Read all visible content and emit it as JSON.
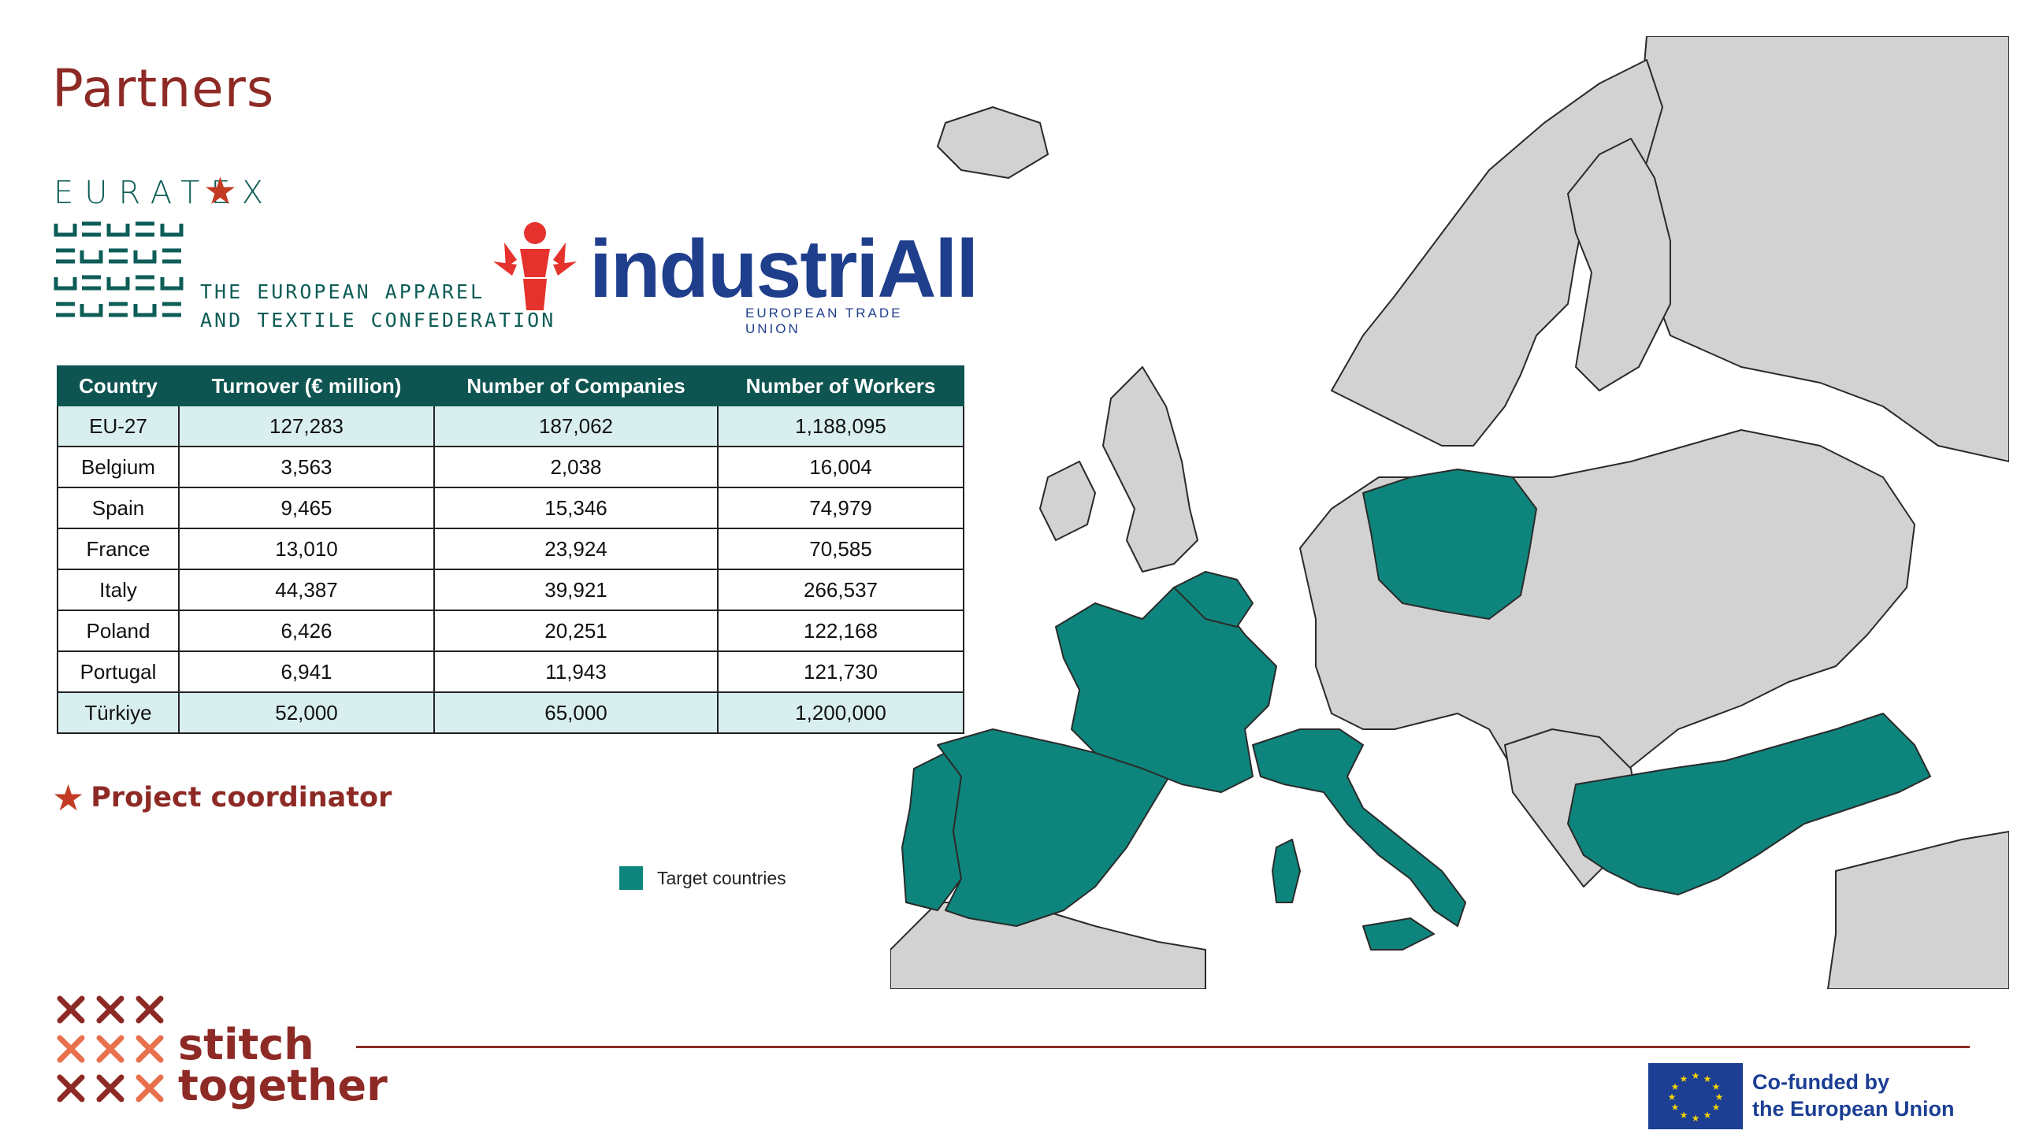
{
  "title": "Partners",
  "euratex": {
    "name": "EURATEX",
    "tagline_1": "THE EUROPEAN APPAREL",
    "tagline_2": "AND TEXTILE CONFEDERATION"
  },
  "industriall": {
    "name": "industriAll",
    "subtitle": "EUROPEAN TRADE UNION"
  },
  "table": {
    "headers": [
      "Country",
      "Turnover (€ million)",
      "Number of Companies",
      "Number of Workers"
    ],
    "rows": [
      [
        "EU-27",
        "127,283",
        "187,062",
        "1,188,095"
      ],
      [
        "Belgium",
        "3,563",
        "2,038",
        "16,004"
      ],
      [
        "Spain",
        "9,465",
        "15,346",
        "74,979"
      ],
      [
        "France",
        "13,010",
        "23,924",
        "70,585"
      ],
      [
        "Italy",
        "44,387",
        "39,921",
        "266,537"
      ],
      [
        "Poland",
        "6,426",
        "20,251",
        "122,168"
      ],
      [
        "Portugal",
        "6,941",
        "11,943",
        "121,730"
      ],
      [
        "Türkiye",
        "52,000",
        "65,000",
        "1,200,000"
      ]
    ],
    "highlighted_rows": [
      0,
      7
    ]
  },
  "coordinator_note": "Project coordinator",
  "legend": {
    "label": "Target countries",
    "color": "#0e857c"
  },
  "map": {
    "target_countries": [
      "Belgium",
      "Spain",
      "Portugal",
      "France",
      "Italy",
      "Poland",
      "Türkiye"
    ],
    "colors": {
      "target": "#0e857c",
      "other": "#d2d2d2",
      "border": "#2a2a2a"
    }
  },
  "footer": {
    "brand_line_1": "stitch",
    "brand_line_2": "together",
    "eu_line_1": "Co-funded by",
    "eu_line_2": "the European Union"
  },
  "colors": {
    "accent": "#8e2a25",
    "teal": "#0e5551",
    "eu_blue": "#1c3f94"
  }
}
